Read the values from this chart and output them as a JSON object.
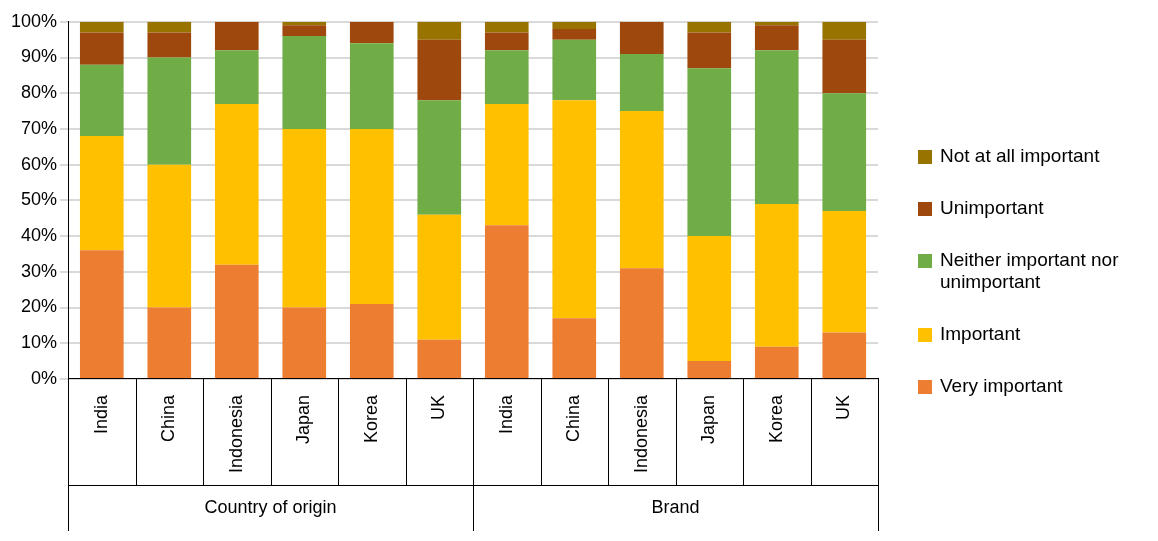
{
  "chart_data": {
    "type": "bar",
    "stacked": true,
    "categories": [
      "India",
      "China",
      "Indonesia",
      "Japan",
      "Korea",
      "UK",
      "India",
      "China",
      "Indonesia",
      "Japan",
      "Korea",
      "UK"
    ],
    "annotations": [
      "Country of origin",
      "Brand"
    ],
    "series": [
      {
        "name": "Very important",
        "color": "#ed7d31",
        "values": [
          36,
          20,
          32,
          20,
          21,
          11,
          43,
          17,
          31,
          5,
          9,
          13
        ]
      },
      {
        "name": "Important",
        "color": "#ffc000",
        "values": [
          32,
          40,
          45,
          50,
          49,
          35,
          34,
          61,
          44,
          35,
          40,
          34
        ]
      },
      {
        "name": "Neither important nor unimportant",
        "color": "#70ad47",
        "values": [
          20,
          30,
          15,
          26,
          24,
          32,
          15,
          17,
          16,
          47,
          43,
          33
        ]
      },
      {
        "name": "Unimportant",
        "color": "#9e480e",
        "values": [
          9,
          7,
          8,
          3,
          6,
          17,
          5,
          3,
          9,
          10,
          7,
          15
        ]
      },
      {
        "name": "Not at all important",
        "color": "#997300",
        "values": [
          3,
          3,
          0,
          1,
          0,
          5,
          3,
          2,
          0,
          3,
          1,
          5
        ]
      }
    ],
    "ylim": [
      0,
      100
    ],
    "yticks": [
      {
        "value": 0,
        "label": "0%"
      },
      {
        "value": 10,
        "label": "10%"
      },
      {
        "value": 20,
        "label": "20%"
      },
      {
        "value": 30,
        "label": "30%"
      },
      {
        "value": 40,
        "label": "40%"
      },
      {
        "value": 50,
        "label": "50%"
      },
      {
        "value": 60,
        "label": "60%"
      },
      {
        "value": 70,
        "label": "70%"
      },
      {
        "value": 80,
        "label": "80%"
      },
      {
        "value": 90,
        "label": "90%"
      },
      {
        "value": 100,
        "label": "100%"
      }
    ],
    "grid": "y",
    "legend": "right"
  }
}
